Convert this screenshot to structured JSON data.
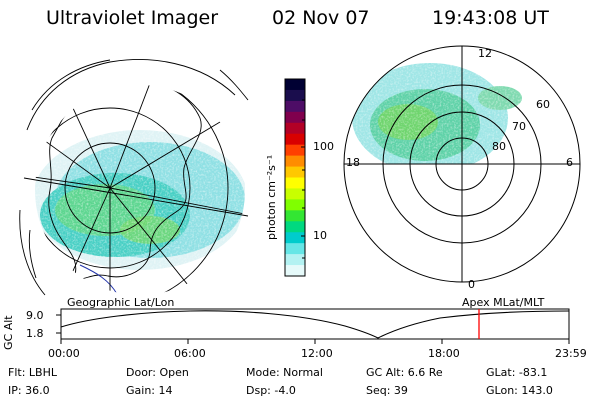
{
  "header": {
    "instrument": "Ultraviolet Imager",
    "date": "02 Nov 07",
    "time": "19:43:08 UT"
  },
  "map_labels": {
    "left": "Geographic Lat/Lon",
    "right": "Apex MLat/MLT"
  },
  "polar_labels": {
    "mlt_top": "12",
    "mlt_left": "18",
    "mlt_right": "6",
    "mlt_bottom": "0",
    "lat_60": "60",
    "lat_70": "70",
    "lat_80": "80"
  },
  "colorbar": {
    "unit_label": "photon cm⁻²s⁻¹",
    "tick_100": "100",
    "tick_10": "10",
    "colors": [
      "#000033",
      "#1a0d4d",
      "#4d0d66",
      "#80004d",
      "#b30026",
      "#d90000",
      "#ff4000",
      "#ff8c00",
      "#ffc800",
      "#ffff00",
      "#c8ff00",
      "#80ff00",
      "#33e633",
      "#00d980",
      "#00cccc",
      "#66e6e6",
      "#b3f2f2",
      "#e6fafa"
    ]
  },
  "altitude": {
    "axis_label": "GC Alt",
    "ymax": "9.0",
    "ymin": "1.8",
    "times": [
      "00:00",
      "06:00",
      "12:00",
      "18:00",
      "23:59"
    ]
  },
  "status": {
    "flt": "Flt: LBHL",
    "ip": "IP: 36.0",
    "door": "Door: Open",
    "gain": "Gain: 14",
    "mode": "Mode: Normal",
    "dsp": "Dsp:   -4.0",
    "gc_alt": "GC Alt: 6.6 Re",
    "seq": "Seq: 39",
    "glat": "GLat: -83.1",
    "glon": "GLon: 143.0"
  }
}
